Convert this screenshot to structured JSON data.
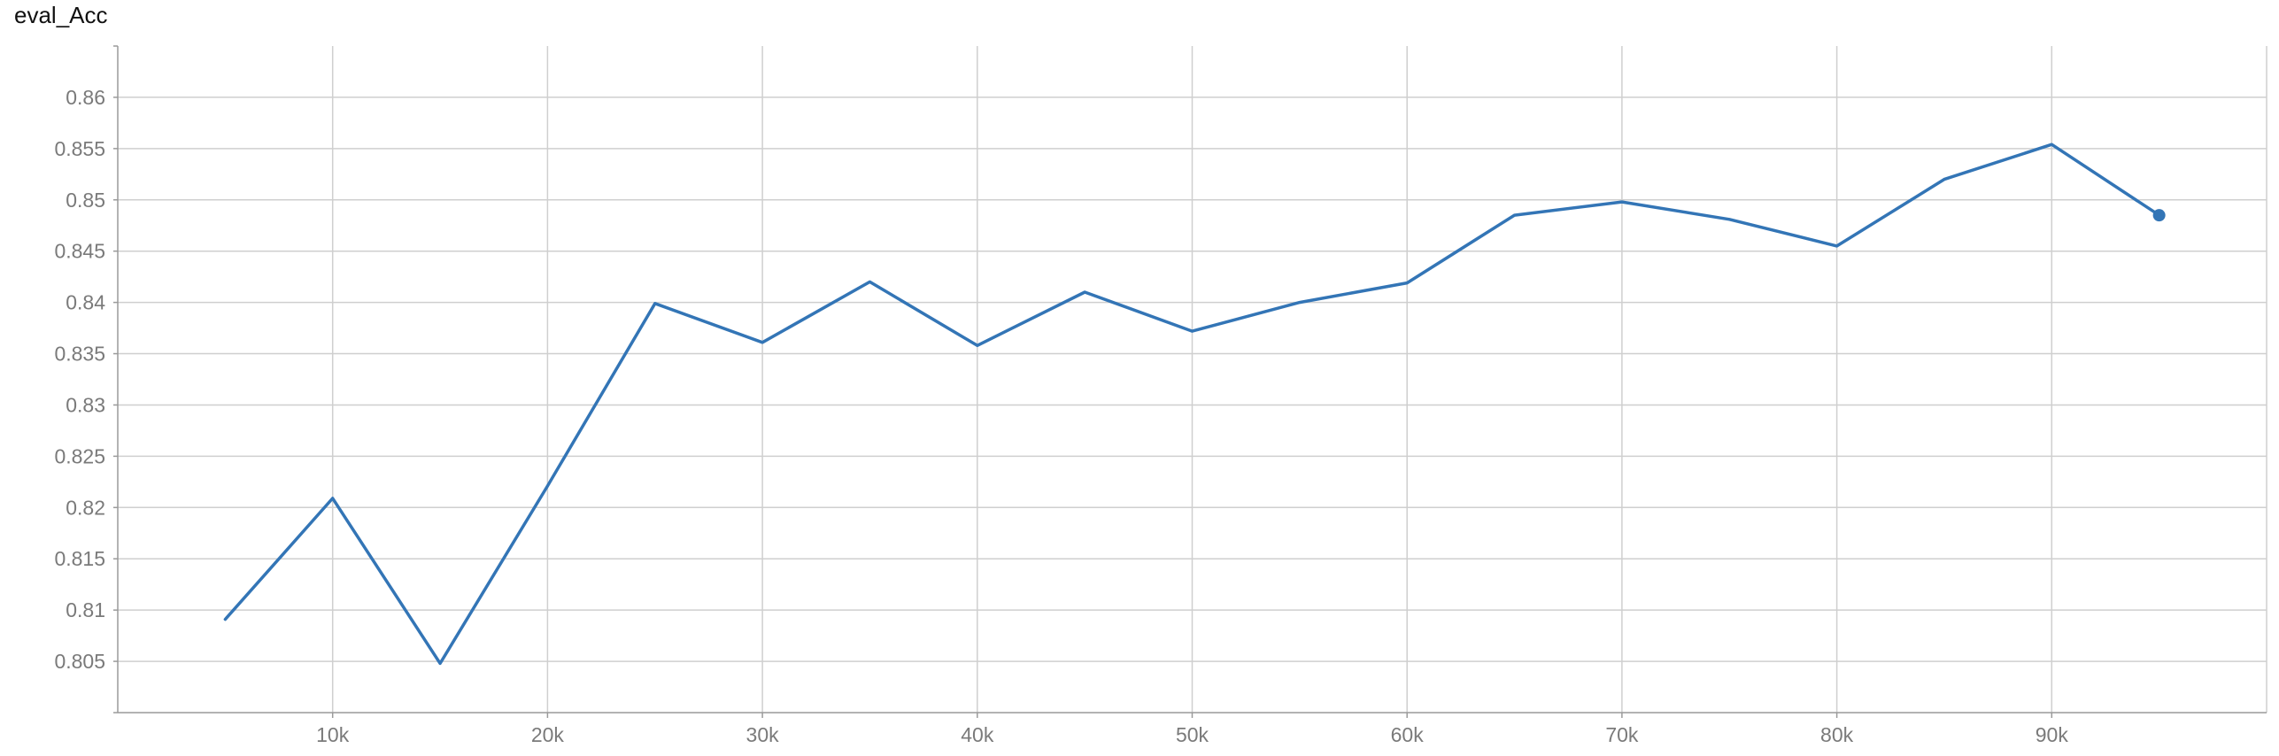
{
  "chart_data": {
    "type": "line",
    "title": "eval_Acc",
    "xlabel": "",
    "ylabel": "",
    "xlim": [
      0,
      100000
    ],
    "ylim": [
      0.8,
      0.865
    ],
    "x_ticks": [
      10000,
      20000,
      30000,
      40000,
      50000,
      60000,
      70000,
      80000,
      90000
    ],
    "x_tick_labels": [
      "10k",
      "20k",
      "30k",
      "40k",
      "50k",
      "60k",
      "70k",
      "80k",
      "90k"
    ],
    "y_ticks": [
      0.805,
      0.81,
      0.815,
      0.82,
      0.825,
      0.83,
      0.835,
      0.84,
      0.845,
      0.85,
      0.855,
      0.86
    ],
    "y_tick_labels": [
      "0.805",
      "0.81",
      "0.815",
      "0.82",
      "0.825",
      "0.83",
      "0.835",
      "0.84",
      "0.845",
      "0.85",
      "0.855",
      "0.86"
    ],
    "grid": true,
    "series": [
      {
        "color": "#3375b6",
        "x": [
          5000,
          10000,
          15000,
          20000,
          25000,
          30000,
          35000,
          40000,
          45000,
          50000,
          55000,
          60000,
          65000,
          70000,
          75000,
          80000,
          85000,
          90000,
          95000
        ],
        "y": [
          0.8091,
          0.8209,
          0.8048,
          0.8221,
          0.8399,
          0.8361,
          0.842,
          0.8358,
          0.841,
          0.8372,
          0.84,
          0.8419,
          0.8485,
          0.8498,
          0.8481,
          0.8455,
          0.852,
          0.8554,
          0.8485
        ]
      }
    ]
  }
}
